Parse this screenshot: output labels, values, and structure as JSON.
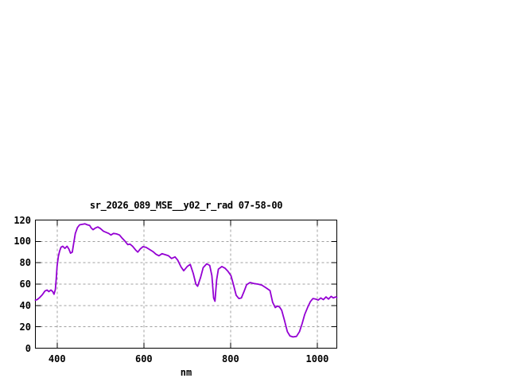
{
  "page": {
    "background_color": "#ffffff",
    "text_color": "#000000"
  },
  "chart_data": {
    "type": "line",
    "title": "sr_2026_089_MSE__y02_r_rad 07-58-00",
    "xlabel": "nm",
    "ylabel": "",
    "xlim": [
      350,
      1045
    ],
    "ylim": [
      0,
      120
    ],
    "x_ticks": [
      400,
      600,
      800,
      1000
    ],
    "y_ticks": [
      0,
      20,
      40,
      60,
      80,
      100,
      120
    ],
    "grid": "dashed",
    "legend_position": "none",
    "line_color": "#9400d3",
    "grid_color": "#a0a0a0",
    "border_color": "#000000",
    "series": [
      {
        "name": "sr_2026_089_MSE__y02_r_rad",
        "points": [
          [
            350,
            45
          ],
          [
            354,
            45.5
          ],
          [
            360,
            47.5
          ],
          [
            366,
            50
          ],
          [
            372,
            53.5
          ],
          [
            377,
            54.5
          ],
          [
            381,
            53
          ],
          [
            386,
            54.5
          ],
          [
            390,
            53
          ],
          [
            393,
            50.5
          ],
          [
            396,
            55
          ],
          [
            398,
            65
          ],
          [
            400,
            77
          ],
          [
            403,
            86
          ],
          [
            406,
            91
          ],
          [
            409,
            94.5
          ],
          [
            413,
            95.5
          ],
          [
            418,
            93.5
          ],
          [
            423,
            95.5
          ],
          [
            427,
            93
          ],
          [
            431,
            89
          ],
          [
            435,
            90
          ],
          [
            438,
            97.5
          ],
          [
            442,
            107.5
          ],
          [
            447,
            113
          ],
          [
            452,
            115.5
          ],
          [
            458,
            116
          ],
          [
            464,
            116.5
          ],
          [
            470,
            115.5
          ],
          [
            475,
            115
          ],
          [
            479,
            112.5
          ],
          [
            483,
            111
          ],
          [
            488,
            112.5
          ],
          [
            494,
            113.5
          ],
          [
            500,
            112
          ],
          [
            507,
            109.5
          ],
          [
            513,
            108.5
          ],
          [
            519,
            107.5
          ],
          [
            524,
            106
          ],
          [
            530,
            107.5
          ],
          [
            537,
            107
          ],
          [
            544,
            106
          ],
          [
            550,
            103
          ],
          [
            557,
            100
          ],
          [
            563,
            97
          ],
          [
            568,
            97.5
          ],
          [
            574,
            95.5
          ],
          [
            581,
            92
          ],
          [
            586,
            90
          ],
          [
            592,
            93
          ],
          [
            598,
            95
          ],
          [
            605,
            94.5
          ],
          [
            613,
            92.5
          ],
          [
            621,
            90.5
          ],
          [
            628,
            88
          ],
          [
            635,
            86.5
          ],
          [
            642,
            88.5
          ],
          [
            650,
            87.5
          ],
          [
            657,
            86.5
          ],
          [
            664,
            84
          ],
          [
            672,
            85.5
          ],
          [
            678,
            82.5
          ],
          [
            686,
            76
          ],
          [
            692,
            72.5
          ],
          [
            700,
            76.5
          ],
          [
            707,
            78.5
          ],
          [
            714,
            70
          ],
          [
            720,
            60
          ],
          [
            724,
            58
          ],
          [
            731,
            66.5
          ],
          [
            737,
            75.5
          ],
          [
            745,
            79
          ],
          [
            752,
            77.5
          ],
          [
            757,
            68
          ],
          [
            761,
            47
          ],
          [
            764,
            44
          ],
          [
            768,
            64
          ],
          [
            772,
            74
          ],
          [
            780,
            76.5
          ],
          [
            787,
            75
          ],
          [
            794,
            72
          ],
          [
            801,
            68
          ],
          [
            807,
            59
          ],
          [
            813,
            49.5
          ],
          [
            819,
            46.5
          ],
          [
            825,
            47
          ],
          [
            831,
            53
          ],
          [
            837,
            59.5
          ],
          [
            845,
            61.5
          ],
          [
            854,
            60.5
          ],
          [
            863,
            60
          ],
          [
            872,
            59
          ],
          [
            882,
            56.5
          ],
          [
            891,
            54
          ],
          [
            897,
            43
          ],
          [
            903,
            38
          ],
          [
            908,
            39.5
          ],
          [
            913,
            38.5
          ],
          [
            918,
            35.5
          ],
          [
            924,
            26.5
          ],
          [
            931,
            15.5
          ],
          [
            937,
            11.5
          ],
          [
            944,
            10.5
          ],
          [
            952,
            11
          ],
          [
            959,
            15.5
          ],
          [
            965,
            23
          ],
          [
            971,
            31.5
          ],
          [
            978,
            38.5
          ],
          [
            984,
            43.5
          ],
          [
            990,
            46.5
          ],
          [
            996,
            46
          ],
          [
            1002,
            45
          ],
          [
            1008,
            47
          ],
          [
            1014,
            45.5
          ],
          [
            1020,
            48
          ],
          [
            1026,
            46
          ],
          [
            1032,
            48.5
          ],
          [
            1037,
            47
          ],
          [
            1042,
            48
          ],
          [
            1045,
            47.5
          ]
        ]
      }
    ]
  }
}
